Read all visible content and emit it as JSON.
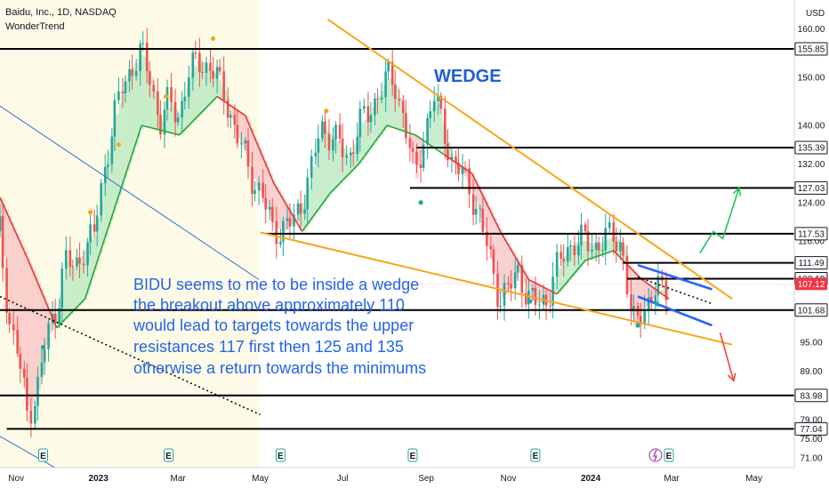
{
  "header": {
    "symbol": "Baidu, Inc., 1D, NASDAQ",
    "indicator": "WonderTrend",
    "currency": "USD"
  },
  "chart_data": {
    "type": "candlestick",
    "ylim": [
      69,
      166
    ],
    "xlim": [
      "2022-10-20",
      "2024-05-31"
    ],
    "y_ticks": [
      71,
      75,
      79,
      89,
      95,
      124,
      132,
      140,
      150,
      160
    ],
    "x_ticks": [
      {
        "date": "2022-11-01",
        "label": "Nov",
        "bold": false
      },
      {
        "date": "2023-01-01",
        "label": "2023",
        "bold": true
      },
      {
        "date": "2023-03-01",
        "label": "Mar",
        "bold": false
      },
      {
        "date": "2023-05-01",
        "label": "May",
        "bold": false
      },
      {
        "date": "2023-07-01",
        "label": "Jul",
        "bold": false
      },
      {
        "date": "2023-09-01",
        "label": "Sep",
        "bold": false
      },
      {
        "date": "2023-11-01",
        "label": "Nov",
        "bold": false
      },
      {
        "date": "2024-01-01",
        "label": "2024",
        "bold": true
      },
      {
        "date": "2024-03-01",
        "label": "Mar",
        "bold": false
      },
      {
        "date": "2024-05-01",
        "label": "May",
        "bold": false
      }
    ],
    "horizontal_levels": [
      {
        "price": 155.85,
        "label": "155.85",
        "from": "2022-10-20"
      },
      {
        "price": 135.39,
        "label": "135.39",
        "from": "2023-08-25"
      },
      {
        "price": 127.03,
        "label": "127.03",
        "from": "2023-08-20"
      },
      {
        "price": 117.53,
        "label": "117.53",
        "from": "2023-05-05"
      },
      {
        "price": 111.49,
        "label": "111.49",
        "from": "2024-01-25"
      },
      {
        "price": 108.19,
        "label": "108.19",
        "from": "2024-01-28"
      },
      {
        "price": 101.68,
        "label": "101.68",
        "from": "2022-10-20"
      },
      {
        "price": 83.98,
        "label": "83.98",
        "from": "2022-10-20"
      },
      {
        "price": 77.04,
        "label": "77.04",
        "from": "2022-10-25"
      }
    ],
    "current_price": {
      "price": 107.12,
      "label": "107.12",
      "color": "#f23645"
    },
    "extra_axis_label": "116.00",
    "price_path": [
      [
        "2022-10-20",
        118
      ],
      [
        "2022-10-27",
        100
      ],
      [
        "2022-11-03",
        92
      ],
      [
        "2022-11-10",
        80
      ],
      [
        "2022-11-17",
        85
      ],
      [
        "2022-11-24",
        96
      ],
      [
        "2022-12-01",
        102
      ],
      [
        "2022-12-08",
        112
      ],
      [
        "2022-12-15",
        110
      ],
      [
        "2022-12-22",
        115
      ],
      [
        "2022-12-29",
        117
      ],
      [
        "2023-01-05",
        130
      ],
      [
        "2023-01-12",
        140
      ],
      [
        "2023-01-19",
        148
      ],
      [
        "2023-01-26",
        152
      ],
      [
        "2023-02-02",
        155
      ],
      [
        "2023-02-09",
        150
      ],
      [
        "2023-02-16",
        140
      ],
      [
        "2023-02-23",
        145
      ],
      [
        "2023-03-02",
        142
      ],
      [
        "2023-03-09",
        150
      ],
      [
        "2023-03-16",
        154
      ],
      [
        "2023-03-23",
        152
      ],
      [
        "2023-03-30",
        150
      ],
      [
        "2023-04-06",
        146
      ],
      [
        "2023-04-13",
        138
      ],
      [
        "2023-04-20",
        134
      ],
      [
        "2023-04-27",
        128
      ],
      [
        "2023-05-04",
        124
      ],
      [
        "2023-05-11",
        119
      ],
      [
        "2023-05-18",
        118
      ],
      [
        "2023-05-25",
        120
      ],
      [
        "2023-06-01",
        124
      ],
      [
        "2023-06-08",
        130
      ],
      [
        "2023-06-15",
        140
      ],
      [
        "2023-06-22",
        138
      ],
      [
        "2023-06-29",
        136
      ],
      [
        "2023-07-06",
        133
      ],
      [
        "2023-07-13",
        140
      ],
      [
        "2023-07-20",
        142
      ],
      [
        "2023-07-27",
        146
      ],
      [
        "2023-08-03",
        150
      ],
      [
        "2023-08-10",
        148
      ],
      [
        "2023-08-17",
        140
      ],
      [
        "2023-08-24",
        129
      ],
      [
        "2023-08-31",
        138
      ],
      [
        "2023-09-07",
        146
      ],
      [
        "2023-09-14",
        140
      ],
      [
        "2023-09-21",
        132
      ],
      [
        "2023-09-28",
        130
      ],
      [
        "2023-10-05",
        126
      ],
      [
        "2023-10-12",
        120
      ],
      [
        "2023-10-19",
        112
      ],
      [
        "2023-10-26",
        104
      ],
      [
        "2023-11-02",
        106
      ],
      [
        "2023-11-09",
        110
      ],
      [
        "2023-11-16",
        104
      ],
      [
        "2023-11-23",
        103
      ],
      [
        "2023-11-30",
        104
      ],
      [
        "2023-12-07",
        110
      ],
      [
        "2023-12-14",
        114
      ],
      [
        "2023-12-21",
        116
      ],
      [
        "2023-12-28",
        116
      ],
      [
        "2024-01-04",
        115
      ],
      [
        "2024-01-11",
        116
      ],
      [
        "2024-01-18",
        117
      ],
      [
        "2024-01-25",
        115
      ],
      [
        "2024-02-01",
        98
      ],
      [
        "2024-02-08",
        102
      ],
      [
        "2024-02-15",
        104
      ],
      [
        "2024-02-22",
        106
      ],
      [
        "2024-02-28",
        107.12
      ]
    ],
    "band_path": [
      [
        "2022-10-20",
        125
      ],
      [
        "2022-11-10",
        112
      ],
      [
        "2022-12-01",
        98
      ],
      [
        "2022-12-22",
        104
      ],
      [
        "2023-01-12",
        122
      ],
      [
        "2023-02-02",
        140
      ],
      [
        "2023-03-02",
        138
      ],
      [
        "2023-03-30",
        146
      ],
      [
        "2023-04-20",
        142
      ],
      [
        "2023-05-11",
        128
      ],
      [
        "2023-06-01",
        118
      ],
      [
        "2023-06-22",
        126
      ],
      [
        "2023-07-13",
        132
      ],
      [
        "2023-08-03",
        140
      ],
      [
        "2023-08-24",
        138
      ],
      [
        "2023-09-14",
        134
      ],
      [
        "2023-10-05",
        130
      ],
      [
        "2023-10-26",
        118
      ],
      [
        "2023-11-16",
        108
      ],
      [
        "2023-12-07",
        105
      ],
      [
        "2023-12-28",
        112
      ],
      [
        "2024-01-18",
        114
      ],
      [
        "2024-02-08",
        108
      ],
      [
        "2024-02-28",
        104
      ]
    ],
    "markers": [
      {
        "date": "2022-12-26",
        "price": 122,
        "color": "#f7a51c"
      },
      {
        "date": "2023-01-16",
        "price": 136,
        "color": "#f7a51c"
      },
      {
        "date": "2023-02-20",
        "price": 146,
        "color": "#f7a51c"
      },
      {
        "date": "2023-03-27",
        "price": 158,
        "color": "#f7a51c"
      },
      {
        "date": "2023-06-19",
        "price": 143,
        "color": "#f7a51c"
      },
      {
        "date": "2022-11-21",
        "price": 94,
        "color": "#26a69a"
      },
      {
        "date": "2023-08-28",
        "price": 124,
        "color": "#26a69a"
      },
      {
        "date": "2023-11-17",
        "price": 103.5,
        "color": "#26a69a"
      },
      {
        "date": "2024-02-05",
        "price": 98.5,
        "color": "#26a69a"
      },
      {
        "date": "2024-02-19",
        "price": 103,
        "color": "#26a69a"
      }
    ],
    "earnings_markers": [
      "2022-11-21",
      "2023-02-22",
      "2023-05-16",
      "2023-08-22",
      "2023-11-21",
      "2024-02-28"
    ],
    "wedge_upper": [
      [
        "2023-06-20",
        162
      ],
      [
        "2024-04-15",
        104
      ]
    ],
    "wedge_lower": [
      [
        "2023-05-01",
        117.8
      ],
      [
        "2024-04-15",
        94.5
      ]
    ],
    "channel_upper": [
      [
        "2024-02-05",
        111
      ],
      [
        "2024-03-31",
        106
      ]
    ],
    "channel_lower": [
      [
        "2024-02-05",
        104.5
      ],
      [
        "2024-03-31",
        98.5
      ]
    ],
    "dotted_trend_1": [
      [
        "2022-10-20",
        104.5
      ],
      [
        "2023-05-01",
        80
      ]
    ],
    "dotted_trend_2": [
      [
        "2024-02-05",
        108.5
      ],
      [
        "2024-03-31",
        103
      ]
    ],
    "blue_trend_1": [
      [
        "2022-10-20",
        144
      ],
      [
        "2023-04-30",
        108
      ]
    ],
    "blue_trend_2": [
      [
        "2022-10-20",
        75.5
      ],
      [
        "2022-12-06",
        68
      ]
    ],
    "green_projection": [
      [
        "2024-03-22",
        113.5
      ],
      [
        "2024-04-01",
        118
      ],
      [
        "2024-04-08",
        116.5
      ],
      [
        "2024-04-20",
        127
      ]
    ],
    "red_projection": [
      [
        "2024-04-06",
        97
      ],
      [
        "2024-04-16",
        87
      ]
    ],
    "highlight_region": {
      "from": "2022-10-20",
      "to": "2023-04-30"
    },
    "annotations": {
      "wedge_label": "WEDGE",
      "analysis_lines": [
        "BIDU seems to me to be inside a wedge",
        "the breakout above approximately 110",
        "would lead to targets towards the upper",
        "resistances 117 first then 125 and 135",
        "otherwise a return towards the minimums"
      ]
    },
    "colors": {
      "wedge": "#f7a51c",
      "channel": "#2962ff",
      "trend_line": "#3d6ad6",
      "projection_up": "#22c55e",
      "projection_down": "#ef4444",
      "band_up": "#22a83a",
      "band_down": "#e53935",
      "fill_up": "#b9e8c0",
      "fill_down": "#f8c4c4"
    }
  }
}
